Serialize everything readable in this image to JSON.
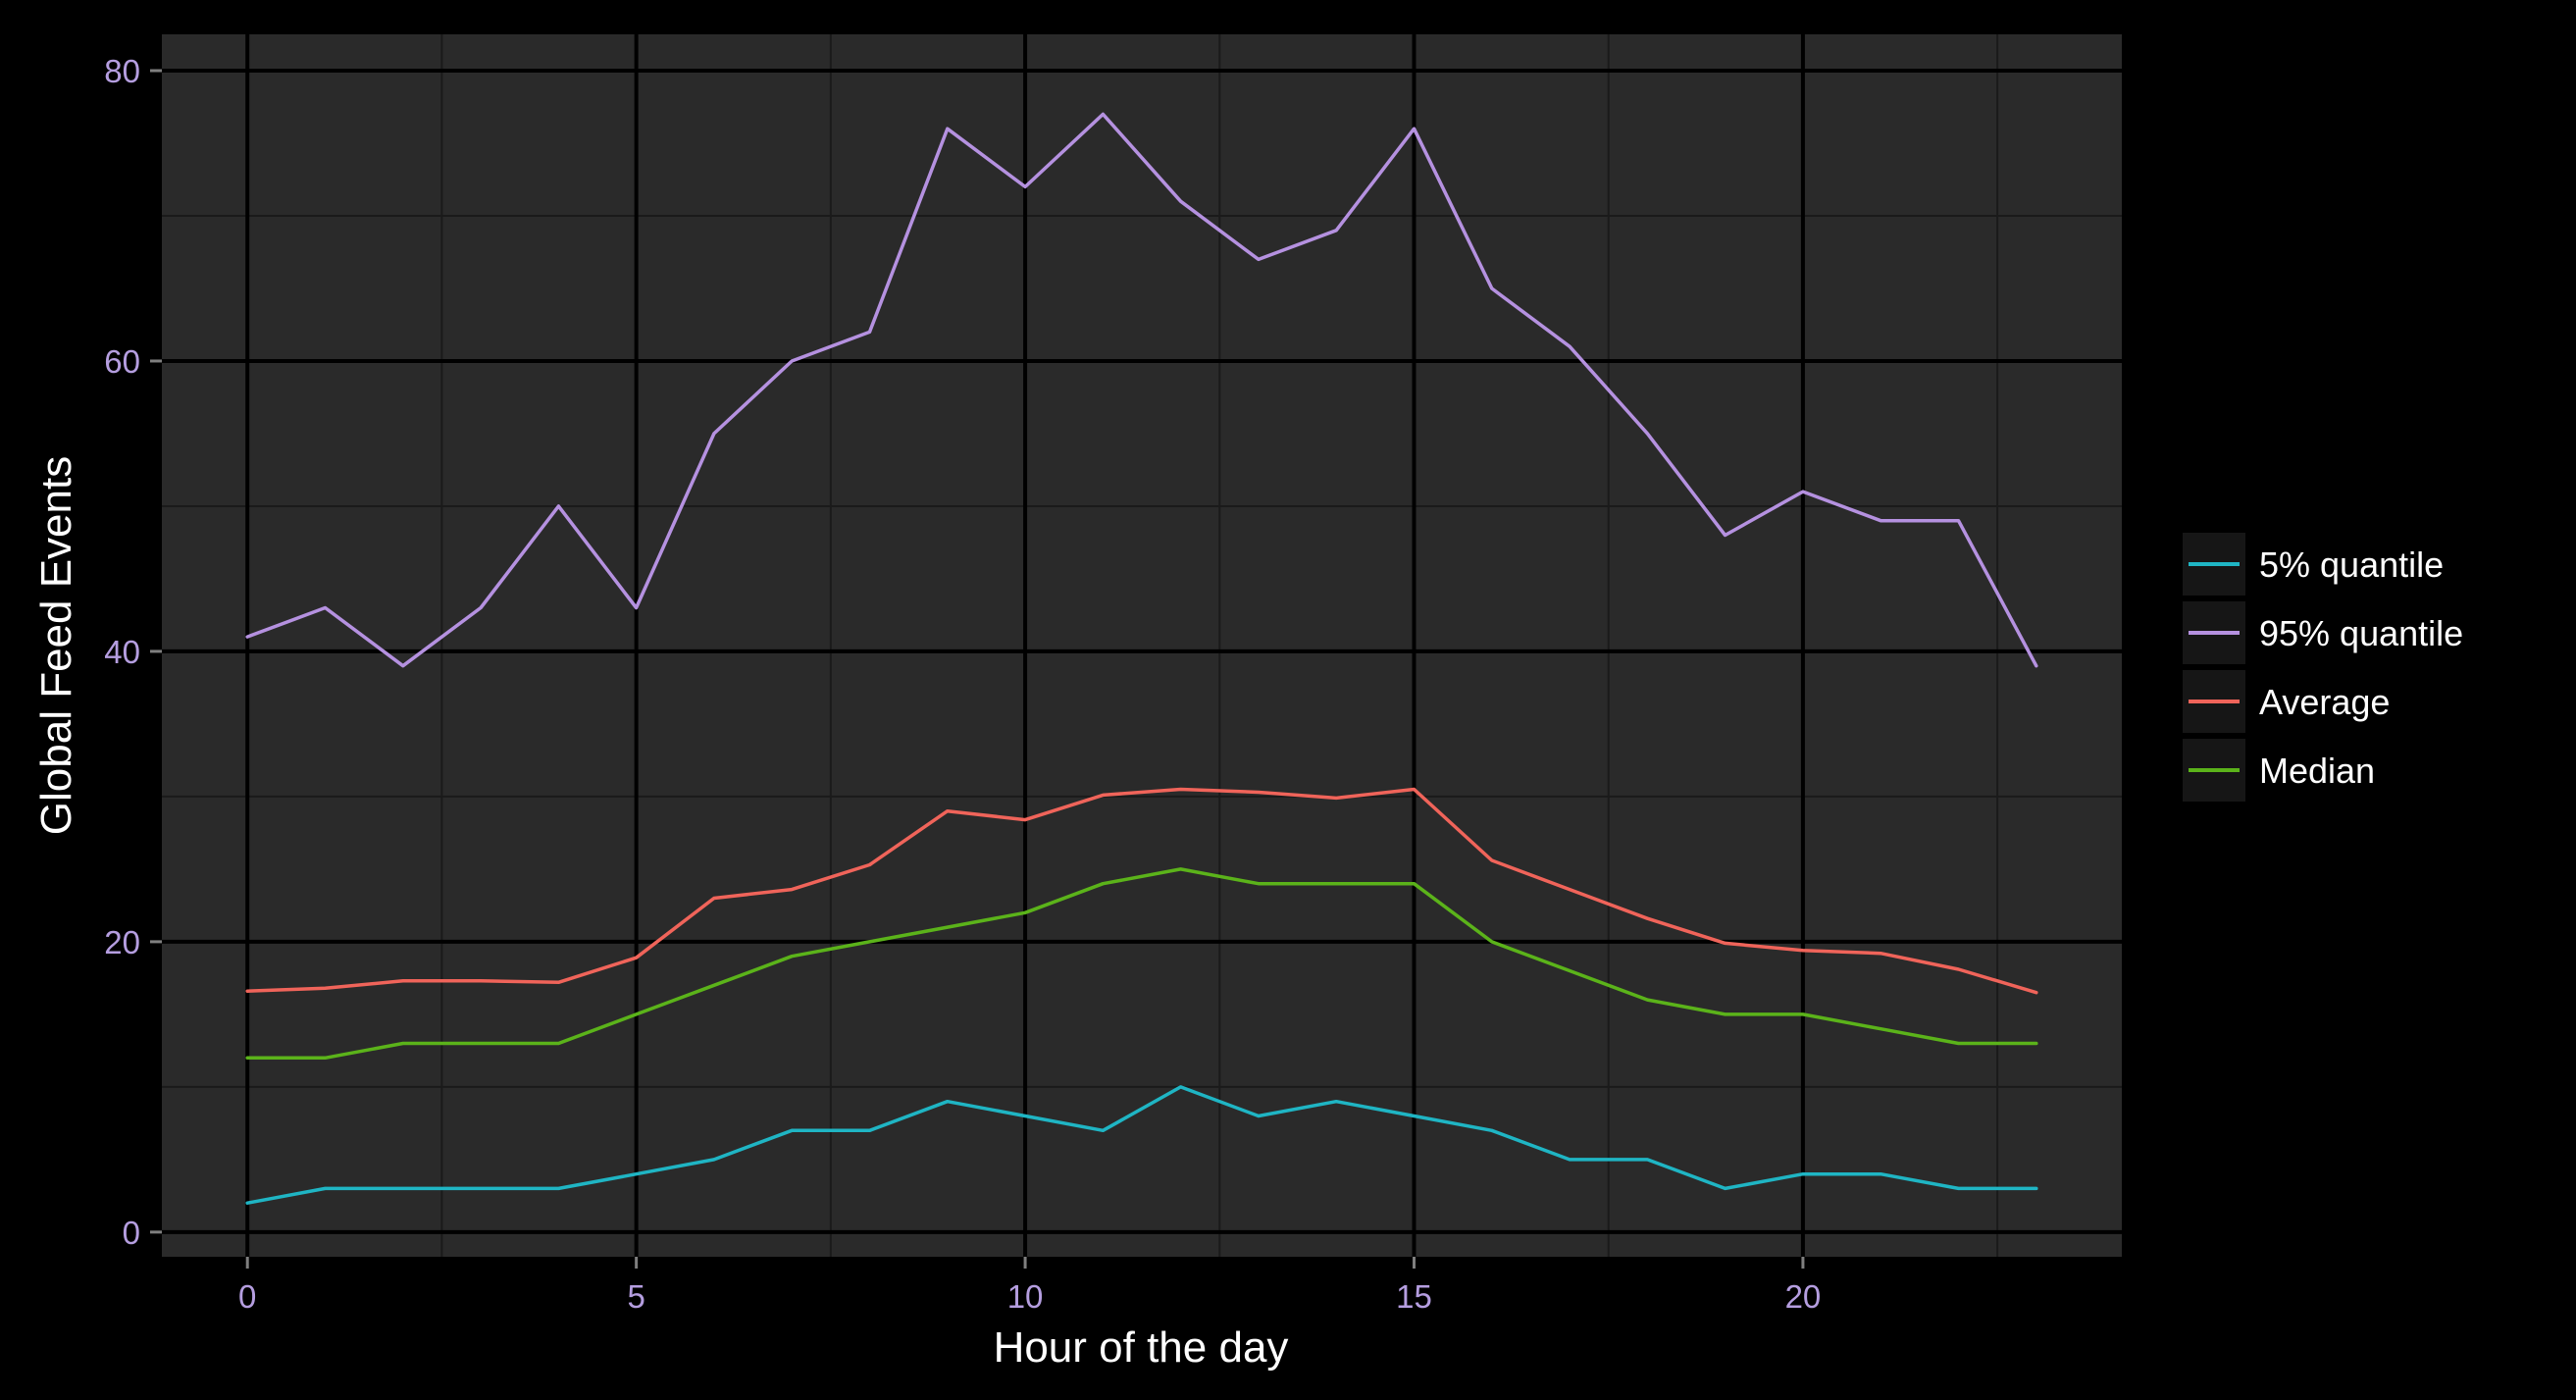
{
  "chart_data": {
    "type": "line",
    "title": "",
    "xlabel": "Hour of the day",
    "ylabel": "Global Feed Events",
    "xlim": [
      -1.1,
      24.1
    ],
    "ylim": [
      -1.7,
      82.5
    ],
    "x_ticks": [
      0,
      5,
      10,
      15,
      20
    ],
    "y_ticks": [
      0,
      20,
      40,
      60,
      80
    ],
    "x_minor_ticks": [
      2.5,
      7.5,
      12.5,
      17.5,
      22.5
    ],
    "y_minor_ticks": [
      10,
      30,
      50,
      70
    ],
    "x_tick_labels": [
      "0",
      "5",
      "10",
      "15",
      "20"
    ],
    "y_tick_labels": [
      "0",
      "20",
      "40",
      "60",
      "80"
    ],
    "grid": true,
    "legend_position": "right",
    "colors": {
      "background": "#000000",
      "panel": "#2a2a2a",
      "grid": "#000000",
      "minor_grid": "#1a1a1a",
      "tick_label": "#b59ee0",
      "axis_title": "#ffffff",
      "legend_key_bg": "#161616"
    },
    "x": [
      0,
      1,
      2,
      3,
      4,
      5,
      6,
      7,
      8,
      9,
      10,
      11,
      12,
      13,
      14,
      15,
      16,
      17,
      18,
      19,
      20,
      21,
      22,
      23
    ],
    "series": [
      {
        "name": "5% quantile",
        "color": "#1fb5c4",
        "values": [
          2,
          3,
          3,
          3,
          3,
          4,
          5,
          7,
          7,
          9,
          8,
          7,
          10,
          8,
          9,
          8,
          7,
          5,
          5,
          3,
          4,
          4,
          3,
          3
        ]
      },
      {
        "name": "95% quantile",
        "color": "#b591e0",
        "values": [
          41,
          43,
          39,
          43,
          50,
          43,
          55,
          60,
          62,
          76,
          72,
          77,
          71,
          67,
          69,
          76,
          65,
          61,
          55,
          48,
          51,
          49,
          49,
          39
        ]
      },
      {
        "name": "Average",
        "color": "#f0645a",
        "values": [
          16.6,
          16.8,
          17.3,
          17.3,
          17.2,
          18.9,
          23.0,
          23.6,
          25.3,
          29.0,
          28.4,
          30.1,
          30.5,
          30.3,
          29.9,
          30.5,
          25.6,
          23.6,
          21.6,
          19.9,
          19.4,
          19.2,
          18.1,
          16.5
        ]
      },
      {
        "name": "Median",
        "color": "#5bb31a",
        "values": [
          12,
          12,
          13,
          13,
          13,
          15,
          17,
          19,
          20,
          21,
          22,
          24,
          25,
          24,
          24,
          24,
          20,
          18,
          16,
          15,
          15,
          14,
          13,
          13
        ]
      }
    ]
  }
}
